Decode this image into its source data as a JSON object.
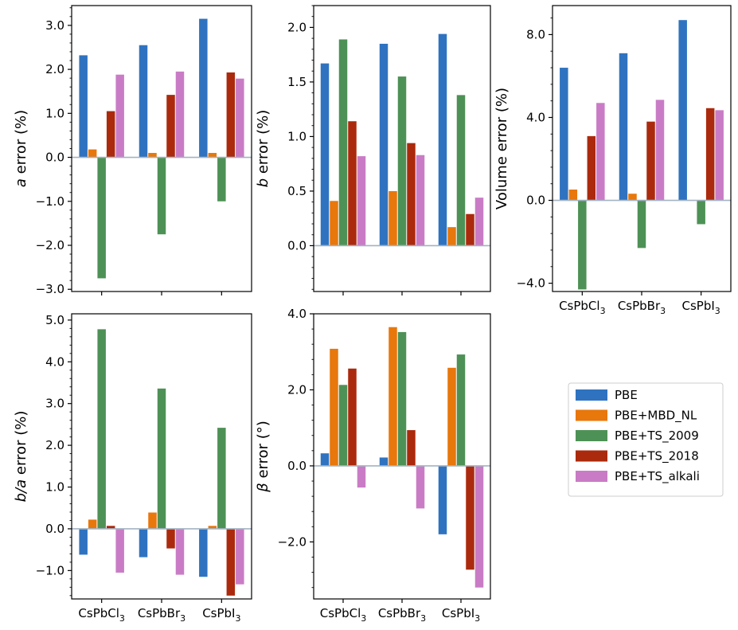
{
  "colors": {
    "PBE": "#2f73c0",
    "PBE+MBD_NL": "#e8770c",
    "PBE+TS_2009": "#4e9156",
    "PBE+TS_2018": "#ab2a0d",
    "PBE+TS_alkali": "#c97cc5",
    "zero_line": "#a3b3c3"
  },
  "legend": {
    "placement": "lower-right empty slot",
    "entries": [
      "PBE",
      "PBE+MBD_NL",
      "PBE+TS_2009",
      "PBE+TS_2018",
      "PBE+TS_alkali"
    ]
  },
  "chart_data": [
    {
      "id": "a_error",
      "type": "bar",
      "ylabel": {
        "italic": "a",
        "rest": " error (%)"
      },
      "categories": [
        "CsPbCl3",
        "CsPbBr3",
        "CsPbI3"
      ],
      "show_xtick_labels": false,
      "ylim": [
        -3.05,
        3.45
      ],
      "yticks": [
        -3.0,
        -2.0,
        -1.0,
        0.0,
        1.0,
        2.0,
        3.0
      ],
      "ytick_labels": [
        "−3.0",
        "−2.0",
        "−1.0",
        "0.0",
        "1.0",
        "2.0",
        "3.0"
      ],
      "series": [
        {
          "name": "PBE",
          "values": [
            2.32,
            2.55,
            3.15
          ]
        },
        {
          "name": "PBE+MBD_NL",
          "values": [
            0.18,
            0.1,
            0.1
          ]
        },
        {
          "name": "PBE+TS_2009",
          "values": [
            -2.75,
            -1.75,
            -1.0
          ]
        },
        {
          "name": "PBE+TS_2018",
          "values": [
            1.05,
            1.42,
            1.93
          ]
        },
        {
          "name": "PBE+TS_alkali",
          "values": [
            1.88,
            1.95,
            1.79
          ]
        }
      ]
    },
    {
      "id": "b_error",
      "type": "bar",
      "ylabel": {
        "italic": "b",
        "rest": " error (%)"
      },
      "categories": [
        "CsPbCl3",
        "CsPbBr3",
        "CsPbI3"
      ],
      "show_xtick_labels": false,
      "ylim": [
        -0.42,
        2.2
      ],
      "yticks": [
        0.0,
        0.5,
        1.0,
        1.5,
        2.0
      ],
      "ytick_labels": [
        "0.0",
        "0.5",
        "1.0",
        "1.5",
        "2.0"
      ],
      "series": [
        {
          "name": "PBE",
          "values": [
            1.67,
            1.85,
            1.94
          ]
        },
        {
          "name": "PBE+MBD_NL",
          "values": [
            0.41,
            0.5,
            0.17
          ]
        },
        {
          "name": "PBE+TS_2009",
          "values": [
            1.89,
            1.55,
            1.38
          ]
        },
        {
          "name": "PBE+TS_2018",
          "values": [
            1.14,
            0.94,
            0.29
          ]
        },
        {
          "name": "PBE+TS_alkali",
          "values": [
            0.82,
            0.83,
            0.44
          ]
        }
      ]
    },
    {
      "id": "volume_error",
      "type": "bar",
      "ylabel": {
        "italic": "",
        "rest": "Volume error (%)"
      },
      "categories": [
        "CsPbCl3",
        "CsPbBr3",
        "CsPbI3"
      ],
      "show_xtick_labels": true,
      "ylim": [
        -4.4,
        9.4
      ],
      "yticks": [
        -4.0,
        0.0,
        4.0,
        8.0
      ],
      "ytick_labels": [
        "−4.0",
        "0.0",
        "4.0",
        "8.0"
      ],
      "series": [
        {
          "name": "PBE",
          "values": [
            6.4,
            7.1,
            8.7
          ]
        },
        {
          "name": "PBE+MBD_NL",
          "values": [
            0.52,
            0.32,
            0.0
          ]
        },
        {
          "name": "PBE+TS_2009",
          "values": [
            -4.3,
            -2.3,
            -1.15
          ]
        },
        {
          "name": "PBE+TS_2018",
          "values": [
            3.1,
            3.8,
            4.45
          ]
        },
        {
          "name": "PBE+TS_alkali",
          "values": [
            4.7,
            4.85,
            4.35
          ]
        }
      ]
    },
    {
      "id": "b_over_a_error",
      "type": "bar",
      "ylabel": {
        "italic": "b/a",
        "rest": " error (%)"
      },
      "categories": [
        "CsPbCl3",
        "CsPbBr3",
        "CsPbI3"
      ],
      "show_xtick_labels": true,
      "ylim": [
        -1.68,
        5.15
      ],
      "yticks": [
        -1.0,
        0.0,
        1.0,
        2.0,
        3.0,
        4.0,
        5.0
      ],
      "ytick_labels": [
        "−1.0",
        "0.0",
        "1.0",
        "2.0",
        "3.0",
        "4.0",
        "5.0"
      ],
      "series": [
        {
          "name": "PBE",
          "values": [
            -0.62,
            -0.68,
            -1.15
          ]
        },
        {
          "name": "PBE+MBD_NL",
          "values": [
            0.22,
            0.39,
            0.07
          ]
        },
        {
          "name": "PBE+TS_2009",
          "values": [
            4.78,
            3.36,
            2.42
          ]
        },
        {
          "name": "PBE+TS_2018",
          "values": [
            0.07,
            -0.47,
            -1.6
          ]
        },
        {
          "name": "PBE+TS_alkali",
          "values": [
            -1.05,
            -1.1,
            -1.33
          ]
        }
      ]
    },
    {
      "id": "beta_error",
      "type": "bar",
      "ylabel": {
        "italic": "β",
        "rest": " error (°)"
      },
      "categories": [
        "CsPbCl3",
        "CsPbBr3",
        "CsPbI3"
      ],
      "show_xtick_labels": true,
      "ylim": [
        -3.5,
        4.0
      ],
      "yticks": [
        -2.0,
        0.0,
        2.0,
        4.0
      ],
      "ytick_labels": [
        "−2.0",
        "0.0",
        "2.0",
        "4.0"
      ],
      "series": [
        {
          "name": "PBE",
          "values": [
            0.33,
            0.22,
            -1.8
          ]
        },
        {
          "name": "PBE+MBD_NL",
          "values": [
            3.08,
            3.65,
            2.58
          ]
        },
        {
          "name": "PBE+TS_2009",
          "values": [
            2.13,
            3.52,
            2.93
          ]
        },
        {
          "name": "PBE+TS_2018",
          "values": [
            2.56,
            0.94,
            -2.73
          ]
        },
        {
          "name": "PBE+TS_alkali",
          "values": [
            -0.57,
            -1.12,
            -3.2
          ]
        }
      ]
    }
  ]
}
